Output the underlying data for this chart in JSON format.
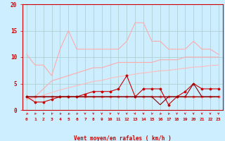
{
  "x": [
    0,
    1,
    2,
    3,
    4,
    5,
    6,
    7,
    8,
    9,
    10,
    11,
    12,
    13,
    14,
    15,
    16,
    17,
    18,
    19,
    20,
    21,
    22,
    23
  ],
  "bg_color": "#cceeff",
  "grid_color": "#aacccc",
  "xlabel": "Vent moyen/en rafales ( km/h )",
  "xlabel_color": "#cc0000",
  "tick_color": "#cc0000",
  "ylim": [
    0,
    20
  ],
  "xlim": [
    -0.5,
    23.5
  ],
  "yticks": [
    0,
    5,
    10,
    15,
    20
  ],
  "line_light1": {
    "color": "#ffaaaa",
    "values": [
      10.5,
      8.5,
      8.5,
      6.5,
      11.5,
      15.0,
      11.5,
      11.5,
      11.5,
      11.5,
      11.5,
      11.5,
      13.0,
      16.5,
      16.5,
      13.0,
      13.0,
      11.5,
      11.5,
      11.5,
      13.0,
      11.5,
      11.5,
      10.5
    ]
  },
  "line_light2": {
    "color": "#ffaaaa",
    "values": [
      2.0,
      2.5,
      4.0,
      5.5,
      6.0,
      6.5,
      7.0,
      7.5,
      8.0,
      8.0,
      8.5,
      9.0,
      9.0,
      9.0,
      9.0,
      9.0,
      9.5,
      9.5,
      9.5,
      10.0,
      10.0,
      10.0,
      10.0,
      10.0
    ]
  },
  "line_light3": {
    "color": "#ffbbbb",
    "values": [
      2.0,
      2.2,
      2.8,
      3.3,
      3.8,
      4.2,
      4.6,
      5.0,
      5.4,
      5.6,
      6.0,
      6.3,
      6.5,
      6.8,
      7.0,
      7.2,
      7.4,
      7.5,
      7.7,
      7.9,
      8.1,
      8.2,
      8.4,
      8.5
    ]
  },
  "line_med1": {
    "color": "#ff5555",
    "marker": "D",
    "values": [
      2.5,
      2.5,
      2.5,
      2.5,
      2.5,
      2.5,
      2.5,
      2.5,
      2.5,
      2.5,
      2.5,
      2.5,
      2.5,
      2.5,
      2.5,
      2.5,
      2.5,
      2.5,
      2.5,
      2.5,
      2.5,
      2.5,
      2.5,
      2.5
    ]
  },
  "line_med2": {
    "color": "#cc0000",
    "marker": "D",
    "values": [
      2.5,
      1.5,
      1.5,
      2.0,
      2.5,
      2.5,
      2.5,
      3.0,
      3.5,
      3.5,
      3.5,
      4.0,
      6.5,
      2.5,
      4.0,
      4.0,
      4.0,
      1.0,
      2.5,
      3.5,
      5.0,
      4.0,
      4.0,
      4.0
    ]
  },
  "line_med3": {
    "color": "#cc0000",
    "values": [
      2.5,
      2.5,
      2.5,
      2.5,
      2.5,
      2.5,
      2.5,
      2.5,
      2.5,
      2.5,
      2.5,
      2.5,
      2.5,
      2.5,
      2.5,
      2.5,
      2.5,
      2.5,
      2.5,
      2.5,
      2.5,
      2.5,
      2.5,
      2.5
    ]
  },
  "line_dark1": {
    "color": "#880000",
    "values": [
      2.5,
      2.5,
      2.5,
      2.5,
      2.5,
      2.5,
      2.5,
      2.5,
      2.5,
      2.5,
      2.5,
      2.5,
      2.5,
      2.5,
      2.5,
      2.5,
      2.5,
      2.5,
      2.5,
      2.5,
      5.0,
      2.5,
      2.5,
      2.5
    ]
  },
  "line_dark2": {
    "color": "#880000",
    "values": [
      2.5,
      2.5,
      2.5,
      2.5,
      2.5,
      2.5,
      2.5,
      2.5,
      2.5,
      2.5,
      2.5,
      2.5,
      2.5,
      2.5,
      2.5,
      2.5,
      1.0,
      2.5,
      2.5,
      2.5,
      2.5,
      2.5,
      2.5,
      2.5
    ]
  },
  "arrow_angles": [
    225,
    210,
    195,
    200,
    215,
    225,
    210,
    180,
    175,
    180,
    190,
    180,
    175,
    165,
    175,
    200,
    215,
    210,
    180,
    175,
    175,
    180,
    180,
    175
  ]
}
